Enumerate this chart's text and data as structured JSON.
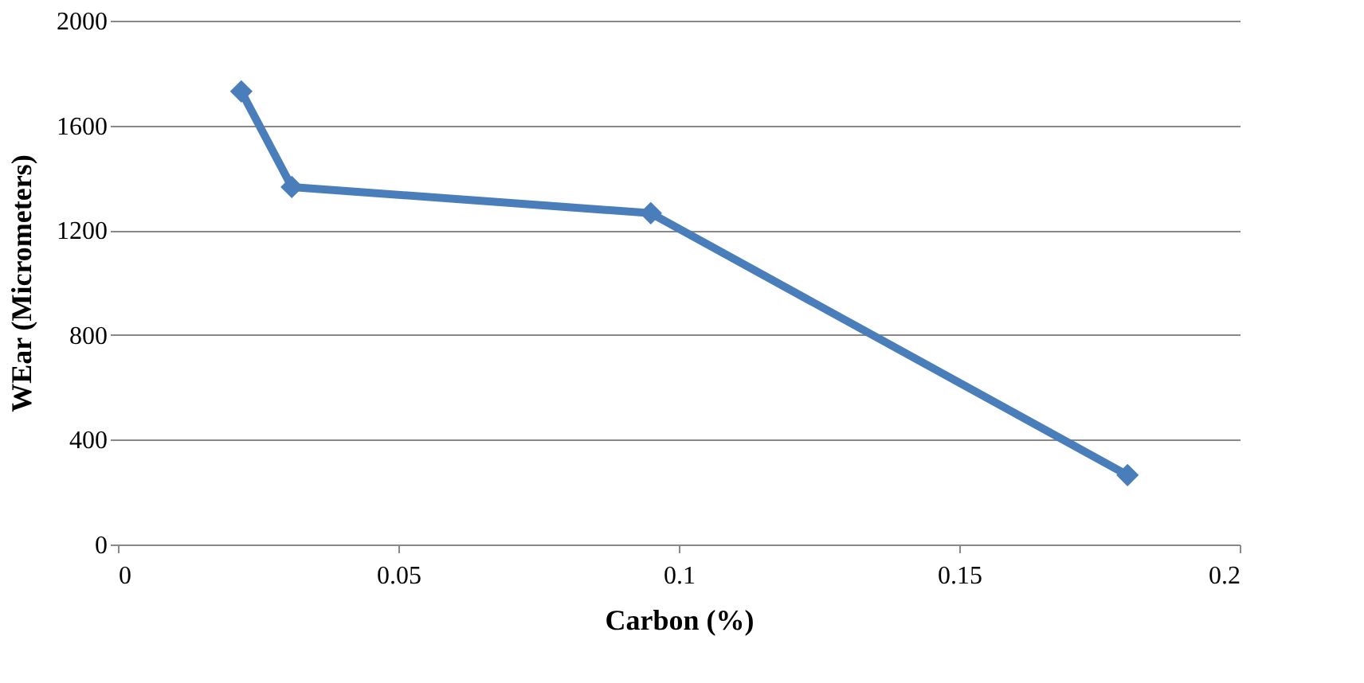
{
  "chart_data": {
    "type": "line",
    "xlabel": "Carbon (%)",
    "ylabel": "WEar (Micrometers)",
    "x": [
      0.022,
      0.031,
      0.095,
      0.18
    ],
    "series": [
      {
        "color": "#4a7ebb",
        "values": [
          1730,
          1365,
          1265,
          265
        ]
      }
    ],
    "xlim": [
      0,
      0.2
    ],
    "xticks": [
      0,
      0.05,
      0.1,
      0.15,
      0.2
    ],
    "ylim": [
      0,
      2000
    ],
    "yticks": [
      0,
      400,
      800,
      1200,
      1600,
      2000
    ],
    "grid": "y",
    "marker": "diamond",
    "line_style": "solid"
  }
}
